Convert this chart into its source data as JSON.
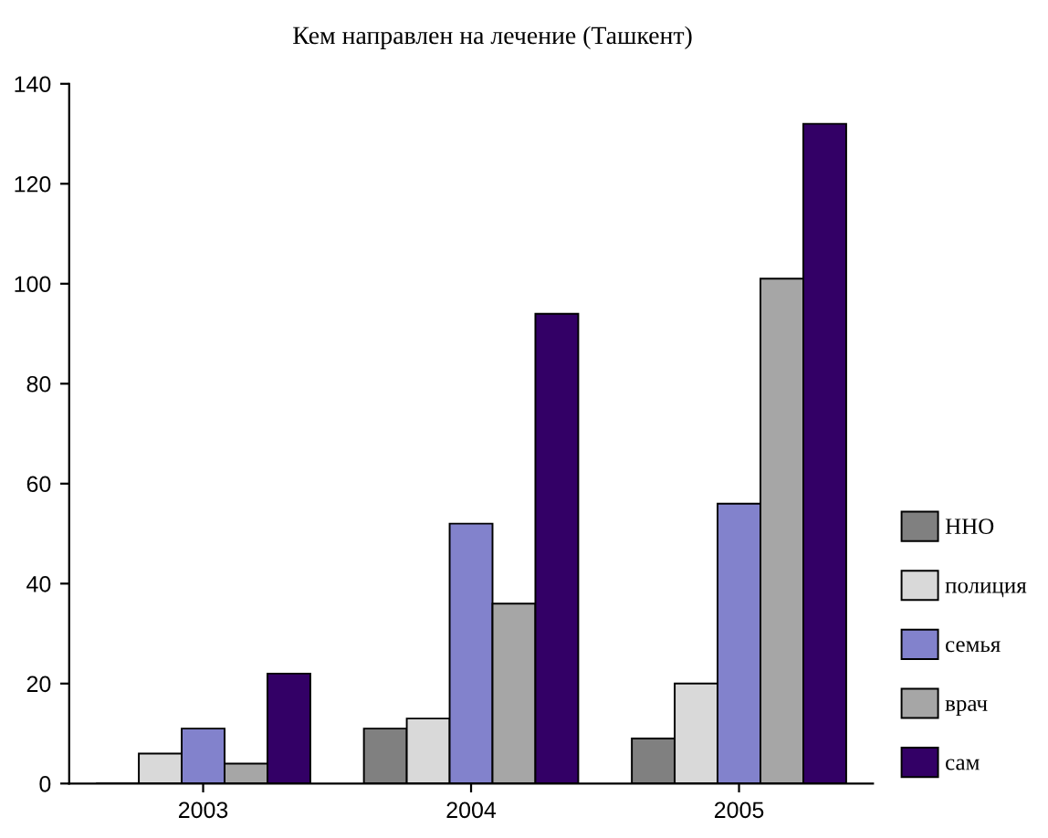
{
  "chart_data": {
    "type": "bar",
    "title": "Кем направлен на лечение (Ташкент)",
    "categories": [
      "2003",
      "2004",
      "2005"
    ],
    "series": [
      {
        "name": "ННО",
        "color": "#808080",
        "values": [
          0,
          11,
          9
        ]
      },
      {
        "name": "полиция",
        "color": "#d9d9d9",
        "values": [
          6,
          13,
          20
        ]
      },
      {
        "name": "семья",
        "color": "#8282cc",
        "values": [
          11,
          52,
          56
        ]
      },
      {
        "name": "врач",
        "color": "#a6a6a6",
        "values": [
          4,
          36,
          101
        ]
      },
      {
        "name": "сам",
        "color": "#330066",
        "values": [
          22,
          94,
          132
        ]
      }
    ],
    "ylim": [
      0,
      140
    ],
    "yticks": [
      0,
      20,
      40,
      60,
      80,
      100,
      120,
      140
    ],
    "grid": false,
    "legend": "right"
  }
}
